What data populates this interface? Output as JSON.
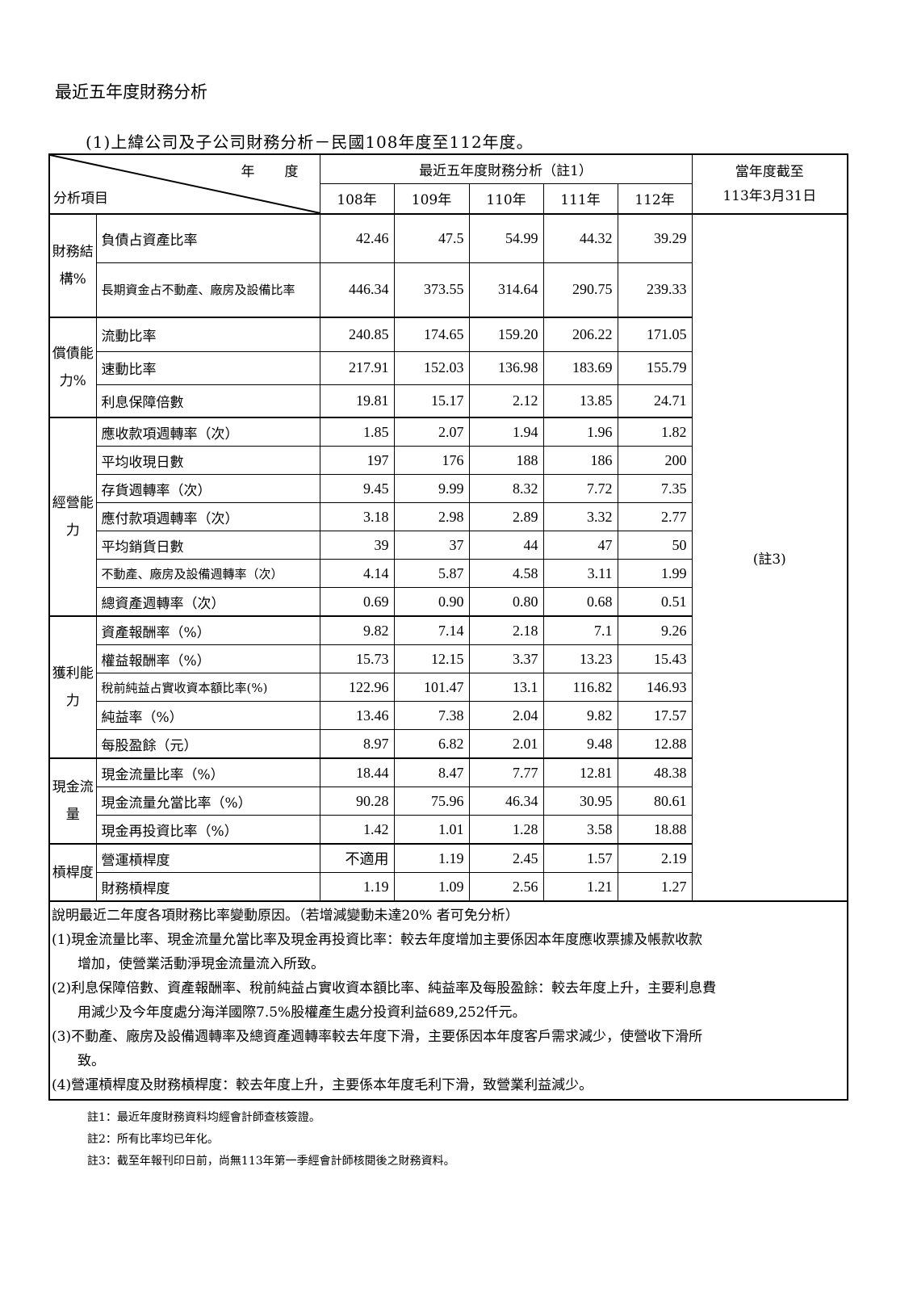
{
  "title": "最近五年度財務分析",
  "subtitle": "(1)上緯公司及子公司財務分析－民國108年度至112年度。",
  "header": {
    "year_label": "年　度",
    "item_label": "分析項目",
    "group_label": "最近五年度財務分析（註1）",
    "years": [
      "108年",
      "109年",
      "110年",
      "111年",
      "112年"
    ],
    "current_label_1": "當年度截至",
    "current_label_2": "113年3月31日",
    "current_value": "(註3)"
  },
  "groups": [
    {
      "category": "財務結構%",
      "rows": [
        {
          "item": "負債占資產比率",
          "values": [
            "42.46",
            "47.5",
            "54.99",
            "44.32",
            "39.29"
          ]
        },
        {
          "item": "長期資金占不動產、廠房及設備比率",
          "values": [
            "446.34",
            "373.55",
            "314.64",
            "290.75",
            "239.33"
          ]
        }
      ]
    },
    {
      "category": "償債能力%",
      "rows": [
        {
          "item": "流動比率",
          "values": [
            "240.85",
            "174.65",
            "159.20",
            "206.22",
            "171.05"
          ]
        },
        {
          "item": "速動比率",
          "values": [
            "217.91",
            "152.03",
            "136.98",
            "183.69",
            "155.79"
          ]
        },
        {
          "item": "利息保障倍數",
          "values": [
            "19.81",
            "15.17",
            "2.12",
            "13.85",
            "24.71"
          ]
        }
      ]
    },
    {
      "category": "經營能力",
      "rows": [
        {
          "item": "應收款項週轉率（次）",
          "values": [
            "1.85",
            "2.07",
            "1.94",
            "1.96",
            "1.82"
          ]
        },
        {
          "item": "平均收現日數",
          "values": [
            "197",
            "176",
            "188",
            "186",
            "200"
          ]
        },
        {
          "item": "存貨週轉率（次）",
          "values": [
            "9.45",
            "9.99",
            "8.32",
            "7.72",
            "7.35"
          ]
        },
        {
          "item": "應付款項週轉率（次）",
          "values": [
            "3.18",
            "2.98",
            "2.89",
            "3.32",
            "2.77"
          ]
        },
        {
          "item": "平均銷貨日數",
          "values": [
            "39",
            "37",
            "44",
            "47",
            "50"
          ]
        },
        {
          "item": "不動產、廠房及設備週轉率（次）",
          "values": [
            "4.14",
            "5.87",
            "4.58",
            "3.11",
            "1.99"
          ]
        },
        {
          "item": "總資產週轉率（次）",
          "values": [
            "0.69",
            "0.90",
            "0.80",
            "0.68",
            "0.51"
          ]
        }
      ]
    },
    {
      "category": "獲利能力",
      "rows": [
        {
          "item": "資產報酬率（%）",
          "values": [
            "9.82",
            "7.14",
            "2.18",
            "7.1",
            "9.26"
          ]
        },
        {
          "item": "權益報酬率（%）",
          "values": [
            "15.73",
            "12.15",
            "3.37",
            "13.23",
            "15.43"
          ]
        },
        {
          "item": "稅前純益占實收資本額比率(%)",
          "values": [
            "122.96",
            "101.47",
            "13.1",
            "116.82",
            "146.93"
          ]
        },
        {
          "item": "純益率（%）",
          "values": [
            "13.46",
            "7.38",
            "2.04",
            "9.82",
            "17.57"
          ]
        },
        {
          "item": "每股盈餘（元）",
          "values": [
            "8.97",
            "6.82",
            "2.01",
            "9.48",
            "12.88"
          ]
        }
      ]
    },
    {
      "category": "現金流量",
      "rows": [
        {
          "item": "現金流量比率（%）",
          "values": [
            "18.44",
            "8.47",
            "7.77",
            "12.81",
            "48.38"
          ]
        },
        {
          "item": "現金流量允當比率（%）",
          "values": [
            "90.28",
            "75.96",
            "46.34",
            "30.95",
            "80.61"
          ]
        },
        {
          "item": "現金再投資比率（%）",
          "values": [
            "1.42",
            "1.01",
            "1.28",
            "3.58",
            "18.88"
          ]
        }
      ]
    },
    {
      "category": "槓桿度",
      "rows": [
        {
          "item": "營運槓桿度",
          "values": [
            "不適用",
            "1.19",
            "2.45",
            "1.57",
            "2.19"
          ]
        },
        {
          "item": "財務槓桿度",
          "values": [
            "1.19",
            "1.09",
            "2.56",
            "1.21",
            "1.27"
          ]
        }
      ]
    }
  ],
  "explanation": {
    "heading": "說明最近二年度各項財務比率變動原因。（若增減變動未達20% 者可免分析）",
    "items": [
      {
        "first": "(1)現金流量比率、現金流量允當比率及現金再投資比率：較去年度增加主要係因本年度應收票據及帳款收款",
        "rest": "增加，使營業活動淨現金流量流入所致。"
      },
      {
        "first": "(2)利息保障倍數、資產報酬率、稅前純益占實收資本額比率、純益率及每股盈餘：較去年度上升，主要利息費",
        "rest": "用減少及今年度處分海洋國際7.5%股權產生處分投資利益689,252仟元。"
      },
      {
        "first": "(3)不動產、廠房及設備週轉率及總資產週轉率較去年度下滑，主要係因本年度客戶需求減少，使營收下滑所",
        "rest": "致。"
      },
      {
        "first": "(4)營運槓桿度及財務槓桿度：較去年度上升，主要係本年度毛利下滑，致營業利益減少。",
        "rest": ""
      }
    ]
  },
  "footnotes": [
    "註1：最近年度財務資料均經會計師查核簽證。",
    "註2：所有比率均已年化。",
    "註3：截至年報刊印日前，尚無113年第一季經會計師核閱後之財務資料。"
  ]
}
